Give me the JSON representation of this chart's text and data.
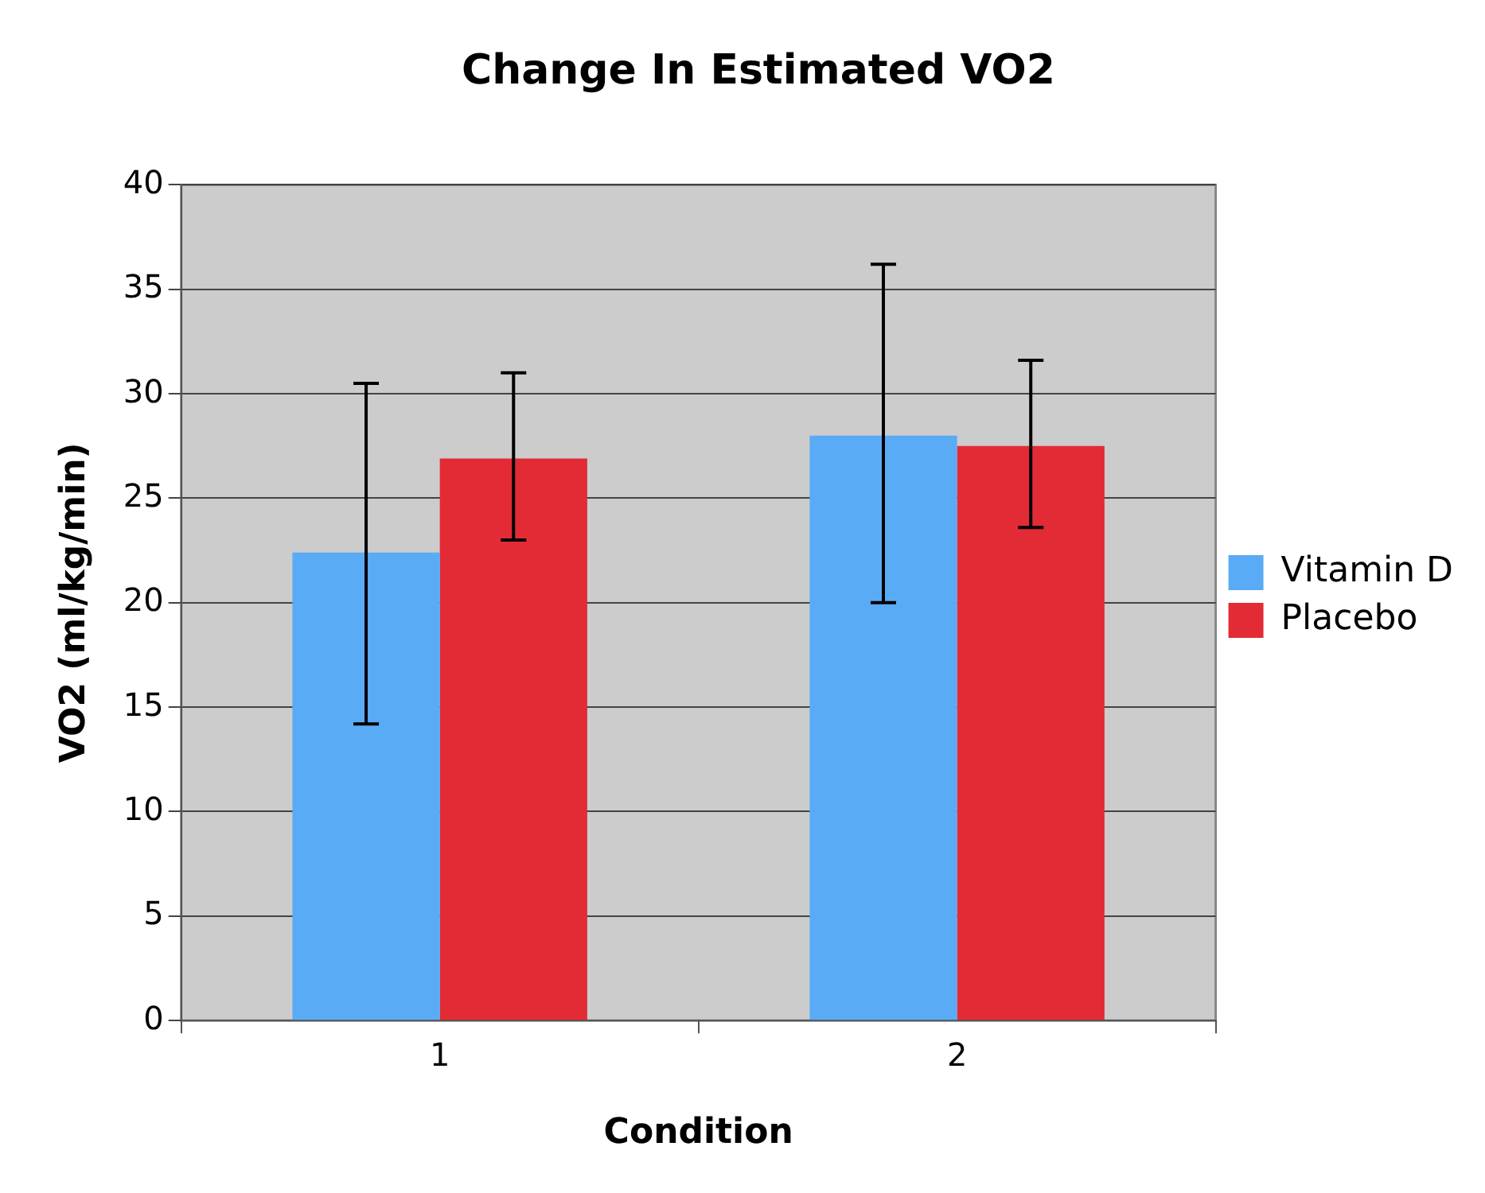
{
  "chart_data": {
    "type": "bar",
    "title": "Change In Estimated VO2",
    "xlabel": "Condition",
    "ylabel": "VO2 (ml/kg/min)",
    "categories": [
      "1",
      "2"
    ],
    "series": [
      {
        "name": "Vitamin D",
        "color": "#5aabf5",
        "values": [
          22.4,
          28.0
        ],
        "errors": [
          [
            14.2,
            30.5
          ],
          [
            20.0,
            36.2
          ]
        ]
      },
      {
        "name": "Placebo",
        "color": "#e32b35",
        "values": [
          26.9,
          27.5
        ],
        "errors": [
          [
            23.0,
            31.0
          ],
          [
            23.6,
            31.6
          ]
        ]
      }
    ],
    "ylim": [
      0,
      40
    ],
    "yticks": [
      0,
      5,
      10,
      15,
      20,
      25,
      30,
      35,
      40
    ],
    "grid": "y",
    "legend": "right"
  }
}
